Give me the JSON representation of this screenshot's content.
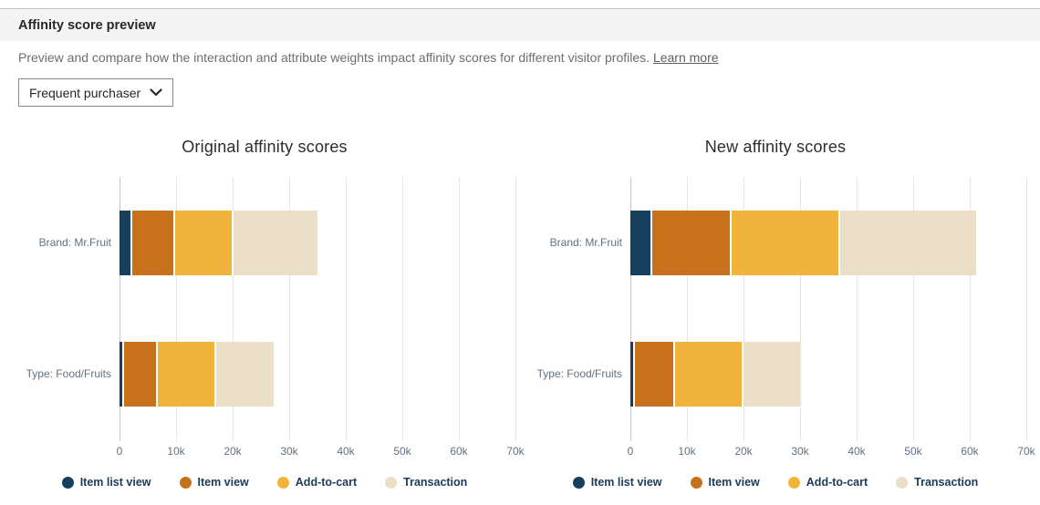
{
  "header": {
    "title": "Affinity score preview"
  },
  "description": {
    "text": "Preview and compare how the interaction and attribute weights impact affinity scores for different visitor profiles.",
    "link_label": "Learn more"
  },
  "profile_select": {
    "value": "Frequent purchaser"
  },
  "colors": {
    "item_list_view": "#17405e",
    "item_view": "#c8711c",
    "add_to_cart": "#f0b43c",
    "transaction": "#ebdfc8",
    "zero_gridline": "#bfc9e2",
    "gridline": "#e5e7ea"
  },
  "chart_data": [
    {
      "type": "bar",
      "orientation": "horizontal-stacked",
      "title": "Original affinity scores",
      "categories": [
        "Brand: Mr.Fruit",
        "Type: Food/Fruits"
      ],
      "series": [
        {
          "name": "Item list view",
          "color": "#17405e",
          "values": [
            2300,
            800
          ]
        },
        {
          "name": "Item view",
          "color": "#c8711c",
          "values": [
            7600,
            6000
          ]
        },
        {
          "name": "Add-to-cart",
          "color": "#f0b43c",
          "values": [
            10400,
            10300
          ]
        },
        {
          "name": "Transaction",
          "color": "#ebdfc8",
          "values": [
            14900,
            10100
          ]
        }
      ],
      "xlim": [
        0,
        70000
      ],
      "xticks": [
        "0",
        "10k",
        "20k",
        "30k",
        "40k",
        "50k",
        "60k",
        "70k"
      ],
      "xtick_values": [
        0,
        10000,
        20000,
        30000,
        40000,
        50000,
        60000,
        70000
      ],
      "grid": true,
      "legend_position": "bottom"
    },
    {
      "type": "bar",
      "orientation": "horizontal-stacked",
      "title": "New affinity scores",
      "categories": [
        "Brand: Mr.Fruit",
        "Type: Food/Fruits"
      ],
      "series": [
        {
          "name": "Item list view",
          "color": "#17405e",
          "values": [
            3800,
            800
          ]
        },
        {
          "name": "Item view",
          "color": "#c8711c",
          "values": [
            14000,
            7100
          ]
        },
        {
          "name": "Add-to-cart",
          "color": "#f0b43c",
          "values": [
            19200,
            12100
          ]
        },
        {
          "name": "Transaction",
          "color": "#ebdfc8",
          "values": [
            24100,
            10000
          ]
        }
      ],
      "xlim": [
        0,
        70000
      ],
      "xticks": [
        "0",
        "10k",
        "20k",
        "30k",
        "40k",
        "50k",
        "60k",
        "70k"
      ],
      "xtick_values": [
        0,
        10000,
        20000,
        30000,
        40000,
        50000,
        60000,
        70000
      ],
      "grid": true,
      "legend_position": "bottom"
    }
  ]
}
